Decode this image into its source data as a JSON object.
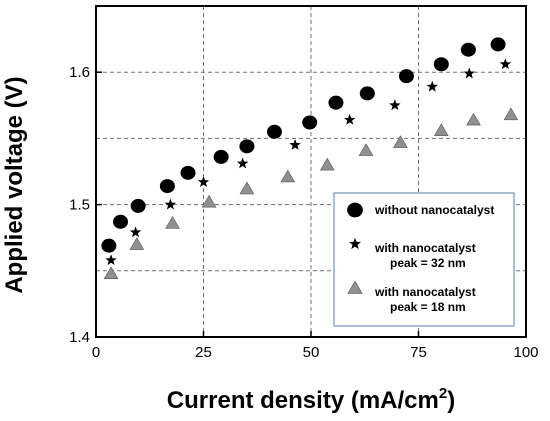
{
  "chart_data": {
    "type": "scatter",
    "xlabel": "Current density (mA/cm",
    "xlabel_sup": "2",
    "xlabel_end": ")",
    "ylabel": "Applied voltage (V)",
    "xlim": [
      0,
      100
    ],
    "ylim": [
      1.4,
      1.65
    ],
    "xticks": [
      0,
      25,
      50,
      75,
      100
    ],
    "yticks": [
      1.4,
      1.5,
      1.6
    ],
    "grid": true,
    "legend_position": "lower-right",
    "series": [
      {
        "name": "without nanocatalyst",
        "label_lines": [
          "without nanocatalyst"
        ],
        "marker": "circle",
        "color": "#000000",
        "points": [
          [
            3,
            1.469
          ],
          [
            5.7,
            1.487
          ],
          [
            9.8,
            1.499
          ],
          [
            16.6,
            1.514
          ],
          [
            21.4,
            1.524
          ],
          [
            29.1,
            1.536
          ],
          [
            35.1,
            1.544
          ],
          [
            41.5,
            1.555
          ],
          [
            49.7,
            1.562
          ],
          [
            55.8,
            1.577
          ],
          [
            63.1,
            1.584
          ],
          [
            72.2,
            1.597
          ],
          [
            80.3,
            1.606
          ],
          [
            86.6,
            1.617
          ],
          [
            93.5,
            1.621
          ]
        ]
      },
      {
        "name": "with nanocatalyst peak = 32 nm",
        "label_lines": [
          "with nanocatalyst",
          "peak = 32 nm"
        ],
        "marker": "star",
        "color": "#000000",
        "points": [
          [
            3.5,
            1.458
          ],
          [
            9.2,
            1.479
          ],
          [
            17.3,
            1.5
          ],
          [
            25,
            1.517
          ],
          [
            34.1,
            1.531
          ],
          [
            46.3,
            1.545
          ],
          [
            59,
            1.564
          ],
          [
            69.5,
            1.575
          ],
          [
            78.2,
            1.589
          ],
          [
            86.8,
            1.599
          ],
          [
            95.2,
            1.606
          ]
        ]
      },
      {
        "name": "with nanocatalyst peak = 18 nm",
        "label_lines": [
          "with nanocatalyst",
          "peak = 18 nm"
        ],
        "marker": "triangle",
        "color": "#909090",
        "points": [
          [
            3.5,
            1.448
          ],
          [
            9.5,
            1.47
          ],
          [
            17.8,
            1.486
          ],
          [
            26.3,
            1.502
          ],
          [
            35.1,
            1.512
          ],
          [
            44.6,
            1.521
          ],
          [
            53.8,
            1.53
          ],
          [
            62.8,
            1.541
          ],
          [
            70.8,
            1.547
          ],
          [
            80.3,
            1.556
          ],
          [
            87.8,
            1.564
          ],
          [
            96.5,
            1.568
          ]
        ]
      }
    ]
  }
}
